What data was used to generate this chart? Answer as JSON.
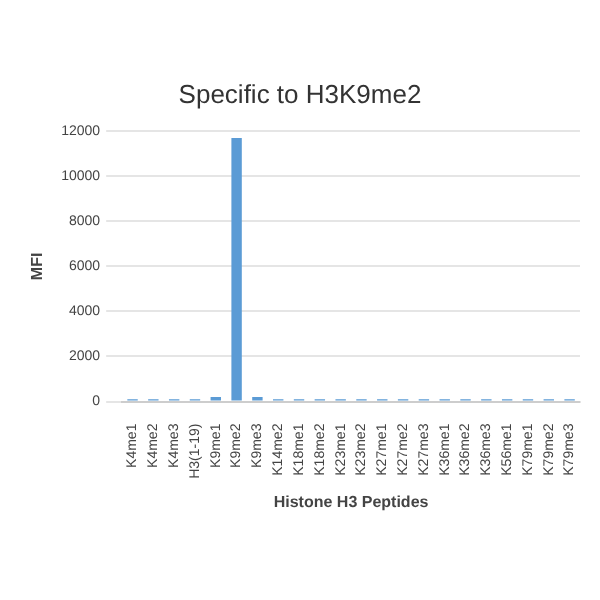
{
  "chart_data": {
    "type": "bar",
    "title": "Specific to H3K9me2",
    "xlabel": "Histone H3 Peptides",
    "ylabel": "MFI",
    "categories": [
      "K4me1",
      "K4me2",
      "K4me3",
      "H3(1-19)",
      "K9me1",
      "K9me2",
      "K9me3",
      "K14me2",
      "K18me1",
      "K18me2",
      "K23me1",
      "K23me2",
      "K27me1",
      "K27me2",
      "K27me3",
      "K36me1",
      "K36me2",
      "K36me3",
      "K56me1",
      "K79me1",
      "K79me2",
      "K79me3"
    ],
    "values": [
      100,
      100,
      100,
      100,
      200,
      11700,
      200,
      100,
      100,
      100,
      100,
      100,
      100,
      100,
      100,
      100,
      100,
      100,
      100,
      100,
      100,
      100
    ],
    "color": "#5b9bd5",
    "ylim": [
      0,
      12000
    ],
    "yticks": [
      0,
      2000,
      4000,
      6000,
      8000,
      10000,
      12000
    ],
    "grid": "y"
  }
}
